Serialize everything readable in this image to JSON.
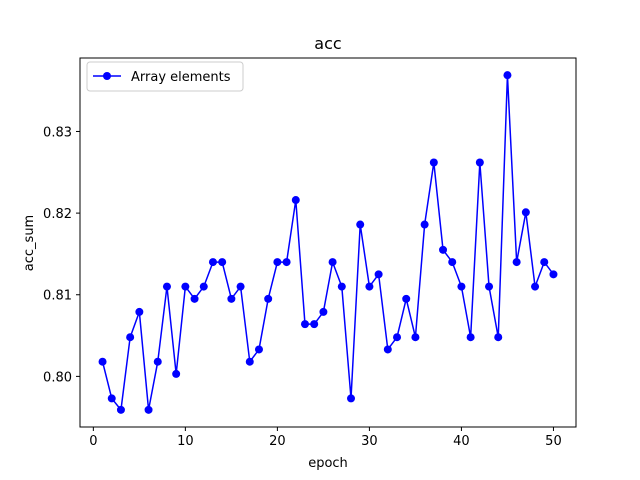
{
  "chart_data": {
    "type": "line",
    "title": "acc",
    "xlabel": "epoch",
    "ylabel": "acc_sum",
    "xlim": [
      -1.45,
      52.45
    ],
    "ylim": [
      0.7938,
      0.839
    ],
    "xticks": [
      0,
      10,
      20,
      30,
      40,
      50
    ],
    "xtick_labels": [
      "0",
      "10",
      "20",
      "30",
      "40",
      "50"
    ],
    "yticks": [
      0.8,
      0.81,
      0.82,
      0.83
    ],
    "ytick_labels": [
      "0.80",
      "0.81",
      "0.82",
      "0.83"
    ],
    "grid": false,
    "legend_position": "upper-left",
    "series": [
      {
        "name": "Array elements",
        "color": "#0000ff",
        "marker": "circle",
        "x": [
          1,
          2,
          3,
          4,
          5,
          6,
          7,
          8,
          9,
          10,
          11,
          12,
          13,
          14,
          15,
          16,
          17,
          18,
          19,
          20,
          21,
          22,
          23,
          24,
          25,
          26,
          27,
          28,
          29,
          30,
          31,
          32,
          33,
          34,
          35,
          36,
          37,
          38,
          39,
          40,
          41,
          42,
          43,
          44,
          45,
          46,
          47,
          48,
          49,
          50
        ],
        "y": [
          0.8018,
          0.7973,
          0.7959,
          0.8048,
          0.8079,
          0.7959,
          0.8018,
          0.811,
          0.8003,
          0.811,
          0.8095,
          0.811,
          0.814,
          0.814,
          0.8095,
          0.811,
          0.8018,
          0.8033,
          0.8095,
          0.814,
          0.814,
          0.8216,
          0.8064,
          0.8064,
          0.8079,
          0.814,
          0.811,
          0.7973,
          0.8186,
          0.811,
          0.8125,
          0.8033,
          0.8048,
          0.8095,
          0.8048,
          0.8186,
          0.8262,
          0.8155,
          0.814,
          0.811,
          0.8048,
          0.8262,
          0.811,
          0.8048,
          0.8369,
          0.814,
          0.8201,
          0.811,
          0.814,
          0.8125
        ]
      }
    ]
  }
}
